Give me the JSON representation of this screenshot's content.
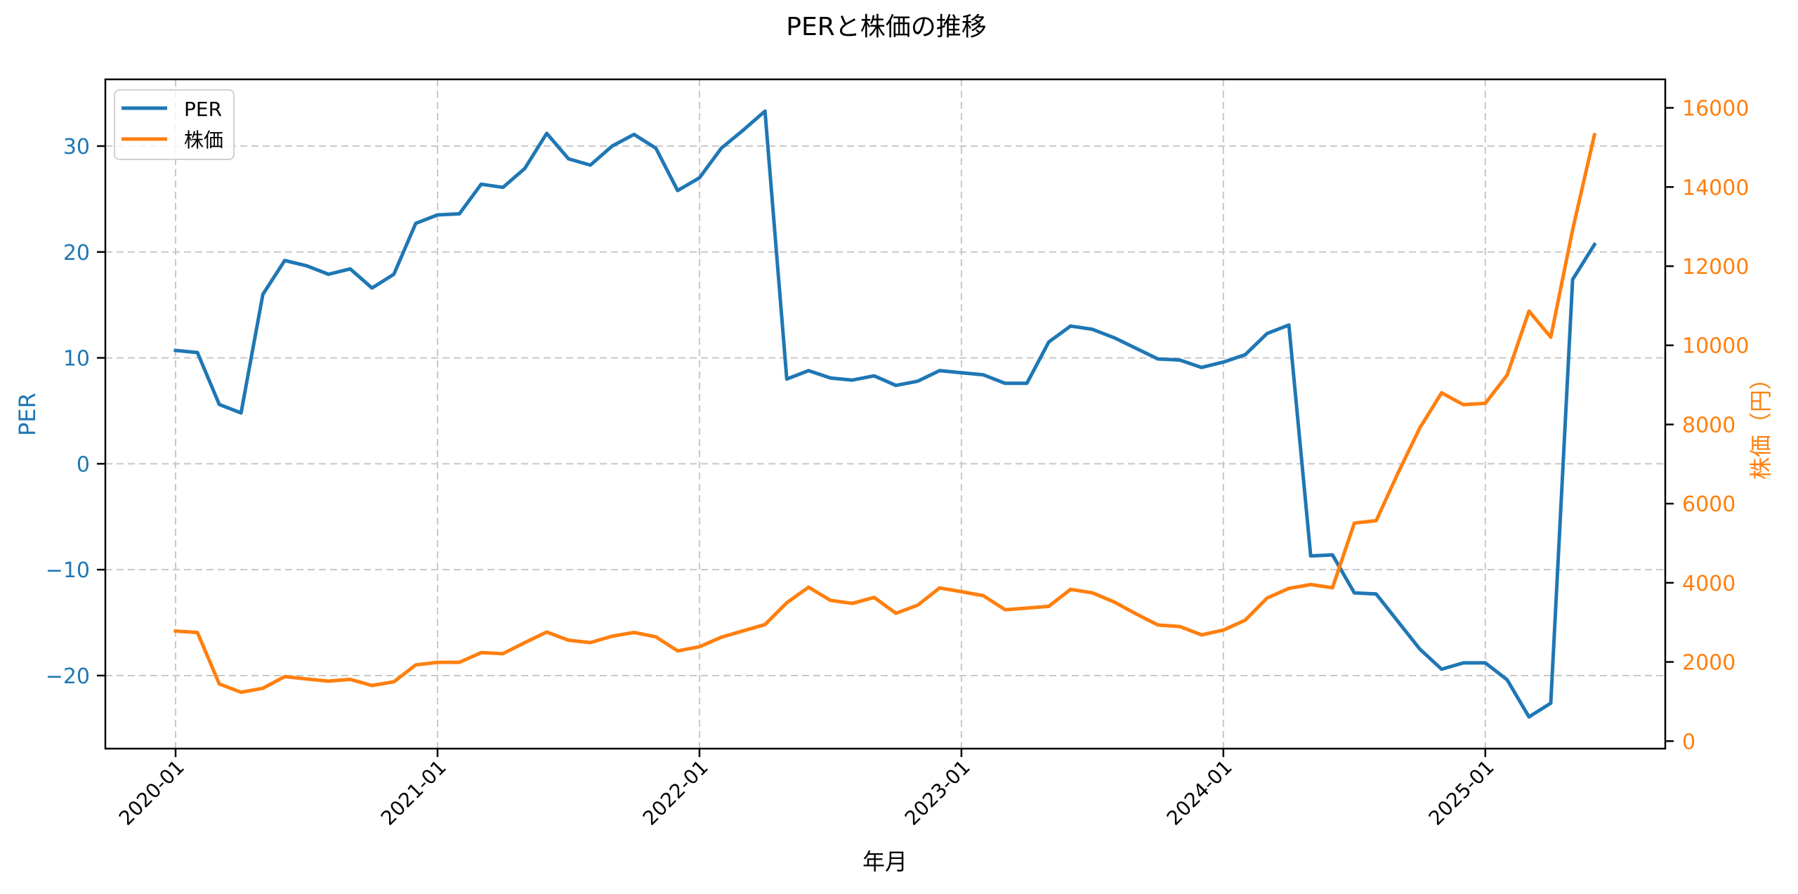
{
  "chart_data": {
    "type": "line",
    "title": "PERと株価の推移",
    "xlabel": "年月",
    "ylabel": "PER",
    "ylabel_right": "株価（円）",
    "x_ticks": [
      "2020-01",
      "2021-01",
      "2022-01",
      "2023-01",
      "2024-01",
      "2025-01"
    ],
    "y_ticks_left": [
      -20,
      -10,
      0,
      10,
      20,
      30
    ],
    "y_ticks_right": [
      0,
      2000,
      4000,
      6000,
      8000,
      10000,
      12000,
      14000,
      16000
    ],
    "ylim_left": [
      -26.9,
      36.3
    ],
    "ylim_right": [
      -190,
      16720
    ],
    "grid": true,
    "legend_position": "upper left",
    "legend": [
      "PER",
      "株価"
    ],
    "colors": {
      "PER": "#1f77b4",
      "株価": "#ff7f0e"
    },
    "x": [
      "2020-01",
      "2020-02",
      "2020-03",
      "2020-04",
      "2020-05",
      "2020-06",
      "2020-07",
      "2020-08",
      "2020-09",
      "2020-10",
      "2020-11",
      "2020-12",
      "2021-01",
      "2021-02",
      "2021-03",
      "2021-04",
      "2021-05",
      "2021-06",
      "2021-07",
      "2021-08",
      "2021-09",
      "2021-10",
      "2021-11",
      "2021-12",
      "2022-01",
      "2022-02",
      "2022-03",
      "2022-04",
      "2022-05",
      "2022-06",
      "2022-07",
      "2022-08",
      "2022-09",
      "2022-10",
      "2022-11",
      "2022-12",
      "2023-01",
      "2023-02",
      "2023-03",
      "2023-04",
      "2023-05",
      "2023-06",
      "2023-07",
      "2023-08",
      "2023-09",
      "2023-10",
      "2023-11",
      "2023-12",
      "2024-01",
      "2024-02",
      "2024-03",
      "2024-04",
      "2024-05",
      "2024-06",
      "2024-07",
      "2024-08",
      "2024-09",
      "2024-10",
      "2024-11",
      "2024-12",
      "2025-01",
      "2025-02",
      "2025-03",
      "2025-04",
      "2025-05",
      "2025-06"
    ],
    "series": [
      {
        "name": "PER",
        "axis": "left",
        "values": [
          10.7,
          10.5,
          5.6,
          4.8,
          16.0,
          19.2,
          18.7,
          17.9,
          18.4,
          16.6,
          17.9,
          22.7,
          23.5,
          23.6,
          26.4,
          26.1,
          27.9,
          31.2,
          28.8,
          28.2,
          30.0,
          31.1,
          29.8,
          25.8,
          27.0,
          29.8,
          31.5,
          33.3,
          8.0,
          8.8,
          8.1,
          7.9,
          8.3,
          7.4,
          7.8,
          8.8,
          8.6,
          8.4,
          7.6,
          7.6,
          11.5,
          13.0,
          12.7,
          11.9,
          10.9,
          9.9,
          9.8,
          9.1,
          9.6,
          10.3,
          12.3,
          13.1,
          -8.7,
          -8.6,
          -12.2,
          -12.3,
          -14.9,
          -17.5,
          -19.4,
          -18.8,
          -18.8,
          -20.4,
          -23.9,
          -22.6,
          17.4,
          20.7
        ]
      },
      {
        "name": "株価",
        "axis": "right",
        "values": [
          2780,
          2745,
          1445,
          1235,
          1335,
          1630,
          1570,
          1515,
          1560,
          1405,
          1500,
          1925,
          1990,
          1990,
          2235,
          2210,
          2490,
          2755,
          2550,
          2490,
          2650,
          2745,
          2635,
          2280,
          2385,
          2625,
          2785,
          2945,
          3495,
          3890,
          3555,
          3480,
          3630,
          3230,
          3435,
          3870,
          3775,
          3675,
          3320,
          3360,
          3405,
          3835,
          3745,
          3515,
          3215,
          2935,
          2895,
          2685,
          2805,
          3055,
          3615,
          3860,
          3955,
          3875,
          5510,
          5570,
          6775,
          7915,
          8800,
          8500,
          8535,
          9250,
          10865,
          10205,
          12920,
          15320
        ]
      }
    ]
  }
}
